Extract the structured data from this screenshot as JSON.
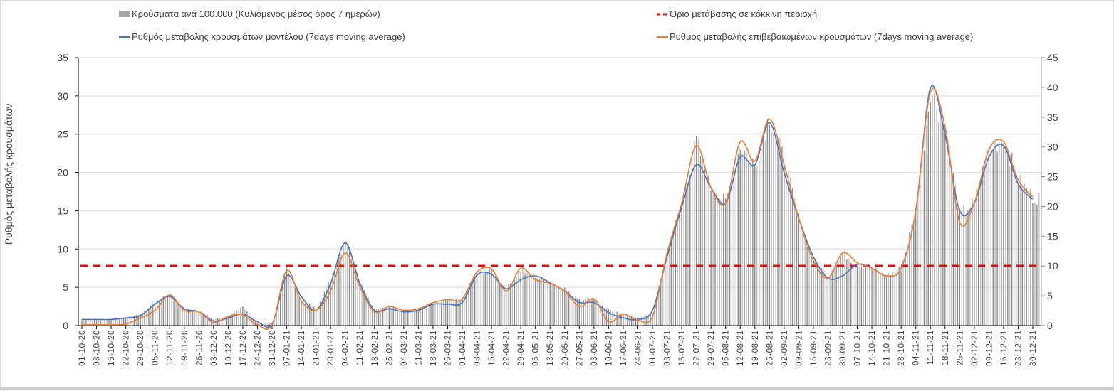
{
  "chart_data": {
    "type": "bar+line",
    "ylabel": "Ρυθμός μεταβολής κρουσμάτων",
    "ylim_left": [
      0,
      35
    ],
    "yticks_left": [
      0,
      5,
      10,
      15,
      20,
      25,
      30,
      35
    ],
    "ylim_right": [
      0,
      45
    ],
    "yticks_right": [
      0,
      5,
      10,
      15,
      20,
      25,
      30,
      35,
      40,
      45
    ],
    "grid": true,
    "legend_position": "top",
    "threshold": {
      "name": "Όριο μετάβασης σε κόκκινη περιοχή",
      "value_left": 7.8,
      "value_right": 10,
      "color": "#ff0000"
    },
    "categories": [
      "01-10-20",
      "08-10-20",
      "15-10-20",
      "22-10-20",
      "29-10-20",
      "05-11-20",
      "12-11-20",
      "19-11-20",
      "26-11-20",
      "03-12-20",
      "10-12-20",
      "17-12-20",
      "24-12-20",
      "31-12-20",
      "07-01-21",
      "14-01-21",
      "21-01-21",
      "28-01-21",
      "04-02-21",
      "11-02-21",
      "18-02-21",
      "25-02-21",
      "04-03-21",
      "11-03-21",
      "18-03-21",
      "25-03-21",
      "01-04-21",
      "08-04-21",
      "15-04-21",
      "22-04-21",
      "29-04-21",
      "06-05-21",
      "13-05-21",
      "20-05-21",
      "27-05-21",
      "03-06-21",
      "10-06-21",
      "17-06-21",
      "24-06-21",
      "01-07-21",
      "08-07-21",
      "15-07-21",
      "22-07-21",
      "29-07-21",
      "05-08-21",
      "12-08-21",
      "19-08-21",
      "26-08-21",
      "02-09-21",
      "09-09-21",
      "16-09-21",
      "23-09-21",
      "30-09-21",
      "07-10-21",
      "14-10-21",
      "21-10-21",
      "28-10-21",
      "04-11-21",
      "11-11-21",
      "18-11-21",
      "25-11-21",
      "02-12-21",
      "09-12-21",
      "16-12-21",
      "23-12-21",
      "30-12-21"
    ],
    "series": [
      {
        "name": "Κρούσματα ανά 100.000 (Κυλιόμενος μέσος όρος 7 ημερών)",
        "kind": "bar",
        "axis": "left",
        "color": "#a6a6a6",
        "values": [
          0.8,
          0.8,
          0.8,
          1.0,
          1.5,
          3.0,
          4.2,
          2.2,
          2.0,
          0.8,
          1.2,
          2.4,
          0.3,
          0.3,
          7.5,
          3.5,
          2.2,
          6.0,
          11.5,
          6.0,
          2.0,
          2.5,
          2.2,
          2.0,
          2.8,
          3.2,
          3.5,
          7.0,
          7.2,
          4.8,
          7.2,
          6.5,
          5.5,
          4.8,
          3.5,
          3.5,
          2.0,
          1.5,
          1.0,
          1.5,
          9.5,
          16,
          24,
          18,
          16,
          23.5,
          21,
          27.5,
          21.5,
          14,
          8.5,
          6.5,
          9.5,
          8.0,
          7.5,
          6.5,
          7.5,
          15,
          31,
          26,
          14.5,
          16,
          23,
          24.5,
          19,
          16.8
        ]
      },
      {
        "name": "Ρυθμός μεταβολής κρουσμάτων μοντέλου (7days moving average)",
        "kind": "line",
        "axis": "left",
        "color": "#4472c4",
        "values": [
          0.8,
          0.8,
          0.8,
          1.0,
          1.3,
          2.8,
          3.8,
          2.2,
          1.8,
          0.6,
          1.0,
          1.5,
          0.5,
          0.2,
          6.5,
          3.8,
          2.0,
          5.5,
          10.8,
          5.5,
          2.0,
          2.2,
          1.8,
          2.0,
          2.8,
          2.8,
          3.0,
          6.6,
          6.7,
          4.8,
          6.0,
          6.5,
          5.6,
          4.5,
          3.0,
          3.0,
          1.7,
          1.0,
          0.8,
          2.0,
          9.0,
          15.5,
          21,
          18,
          16,
          22,
          21,
          26.5,
          20,
          14,
          9,
          6.2,
          6.5,
          8.0,
          7.5,
          6.5,
          7.5,
          15,
          31,
          25,
          15,
          16,
          22,
          23.5,
          18.5,
          16.5
        ]
      },
      {
        "name": "Ρυθμός μεταβολής επιβεβαιωμένων κρουσμάτων (7days moving average)",
        "kind": "line",
        "axis": "left",
        "color": "#ed7d31",
        "values": [
          0.1,
          0.1,
          0.1,
          0.2,
          1.0,
          2.0,
          4.0,
          2.0,
          1.8,
          0.4,
          1.2,
          1.4,
          0.1,
          0.1,
          7.2,
          3.2,
          2.0,
          4.5,
          9.5,
          5.0,
          1.8,
          2.5,
          2.0,
          2.2,
          3.0,
          3.4,
          3.5,
          7.0,
          7.4,
          4.5,
          7.5,
          6.0,
          5.5,
          4.5,
          2.5,
          3.5,
          0.5,
          1.5,
          0.7,
          1.2,
          9.5,
          16,
          23.5,
          18,
          16,
          24,
          21.5,
          27,
          21,
          14,
          8.5,
          6.2,
          9.5,
          8.2,
          7.5,
          6.5,
          7.5,
          15,
          30.5,
          26,
          13.5,
          16,
          23,
          24,
          19,
          16.8
        ]
      }
    ]
  },
  "legend": {
    "bars": "Κρούσματα ανά 100.000 (Κυλιόμενος μέσος όρος 7 ημερών)",
    "threshold": "Όριο μετάβασης σε κόκκινη περιοχή",
    "model": "Ρυθμός μεταβολής κρουσμάτων μοντέλου (7days moving average)",
    "confirmed": "Ρυθμός μεταβολής επιβεβαιωμένων κρουσμάτων (7days moving average)"
  }
}
